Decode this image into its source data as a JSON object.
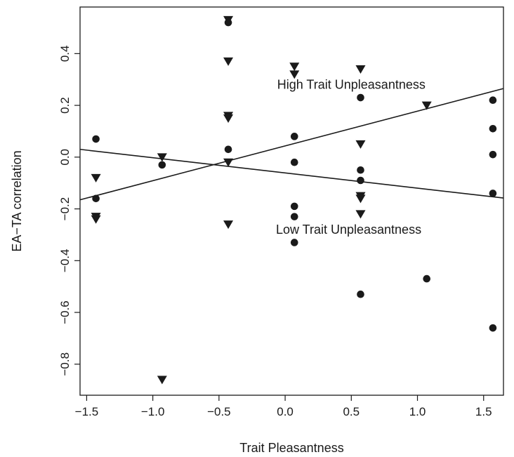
{
  "chart_data": {
    "type": "scatter",
    "xlabel": "Trait Pleasantness",
    "ylabel": "EA−TA correlation",
    "xlim": [
      -1.55,
      1.65
    ],
    "ylim": [
      -0.92,
      0.58
    ],
    "xticks": [
      -1.5,
      -1.0,
      -0.5,
      0.0,
      0.5,
      1.0,
      1.5
    ],
    "xtick_labels": [
      "−1.5",
      "−1.0",
      "−0.5",
      "0.0",
      "0.5",
      "1.0",
      "1.5"
    ],
    "yticks": [
      -0.8,
      -0.6,
      -0.4,
      -0.2,
      0.0,
      0.2,
      0.4
    ],
    "ytick_labels": [
      "−0.8",
      "−0.6",
      "−0.4",
      "−0.2",
      "0.0",
      "0.2",
      "0.4"
    ],
    "grid": false,
    "annotations": [
      {
        "text": "High Trait Unpleasantness",
        "x": 0.5,
        "y": 0.28
      },
      {
        "text": "Low Trait Unpleasantness",
        "x": 0.48,
        "y": -0.28
      }
    ],
    "series": [
      {
        "marker": "triangle-down",
        "points": [
          [
            -1.43,
            -0.08
          ],
          [
            -1.43,
            -0.23
          ],
          [
            -1.43,
            -0.24
          ],
          [
            -0.93,
            0.0
          ],
          [
            -0.93,
            -0.86
          ],
          [
            -0.43,
            0.53
          ],
          [
            -0.43,
            0.37
          ],
          [
            -0.43,
            0.16
          ],
          [
            -0.43,
            0.15
          ],
          [
            -0.43,
            -0.02
          ],
          [
            -0.43,
            -0.26
          ],
          [
            0.07,
            0.35
          ],
          [
            0.07,
            0.32
          ],
          [
            0.57,
            0.34
          ],
          [
            0.57,
            0.05
          ],
          [
            0.57,
            -0.15
          ],
          [
            0.57,
            -0.16
          ],
          [
            0.57,
            -0.22
          ],
          [
            1.07,
            0.2
          ]
        ],
        "fit_line": {
          "x": [
            -1.55,
            1.65
          ],
          "y": [
            -0.165,
            0.265
          ]
        }
      },
      {
        "marker": "circle",
        "points": [
          [
            -1.43,
            0.07
          ],
          [
            -1.43,
            -0.16
          ],
          [
            -0.93,
            -0.03
          ],
          [
            -0.43,
            0.52
          ],
          [
            -0.43,
            0.03
          ],
          [
            0.07,
            0.08
          ],
          [
            0.07,
            -0.02
          ],
          [
            0.07,
            -0.19
          ],
          [
            0.07,
            -0.23
          ],
          [
            0.07,
            -0.33
          ],
          [
            0.57,
            0.23
          ],
          [
            0.57,
            -0.05
          ],
          [
            0.57,
            -0.09
          ],
          [
            0.57,
            -0.53
          ],
          [
            1.07,
            -0.47
          ],
          [
            1.57,
            0.22
          ],
          [
            1.57,
            0.11
          ],
          [
            1.57,
            0.01
          ],
          [
            1.57,
            -0.14
          ],
          [
            1.57,
            -0.66
          ]
        ],
        "fit_line": {
          "x": [
            -1.55,
            1.65
          ],
          "y": [
            0.03,
            -0.158
          ]
        }
      }
    ]
  }
}
